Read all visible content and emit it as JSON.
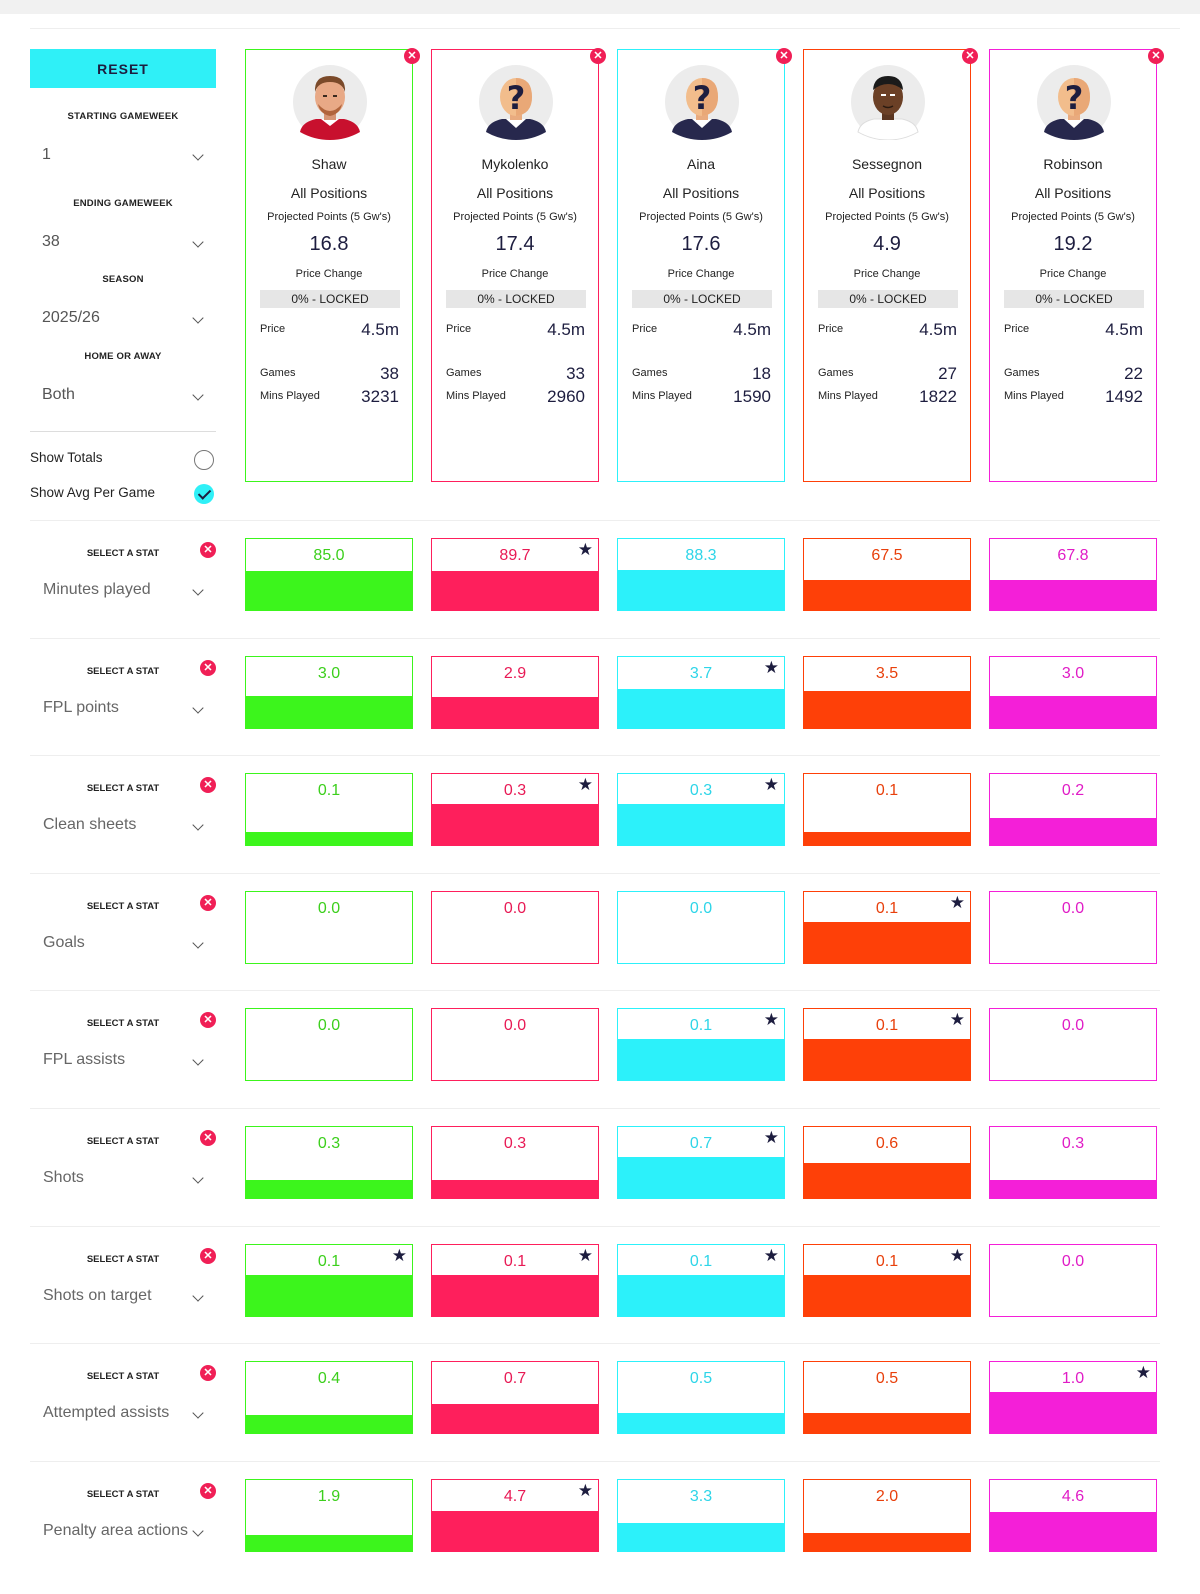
{
  "sidebar": {
    "reset_label": "RESET",
    "starting_gw": {
      "label": "STARTING GAMEWEEK",
      "value": "1"
    },
    "ending_gw": {
      "label": "ENDING GAMEWEEK",
      "value": "38"
    },
    "season": {
      "label": "SEASON",
      "value": "2025/26"
    },
    "home_away": {
      "label": "HOME OR AWAY",
      "value": "Both"
    },
    "show_totals": {
      "label": "Show Totals",
      "checked": false
    },
    "show_avg": {
      "label": "Show Avg Per Game",
      "checked": true
    }
  },
  "card_labels": {
    "projected": "Projected Points (5 Gw's)",
    "price_change": "Price Change",
    "price": "Price",
    "games": "Games",
    "mins": "Mins Played"
  },
  "stat_select_label": "SELECT A STAT",
  "colors": {
    "green": "#3cf51c",
    "red": "#fe1f5c",
    "cyan": "#2cf1fa",
    "orange": "#fe4008",
    "magenta": "#f41fd8",
    "accent": "#2ff0f7",
    "remove": "#f01f56",
    "navy": "#1d1d3f"
  },
  "players": [
    {
      "name": "Shaw",
      "position": "All Positions",
      "projected": "16.8",
      "price_change": "0% - LOCKED",
      "price": "4.5m",
      "games": "38",
      "mins": "3231",
      "avatar": "player-photo",
      "color": "#3cf51c",
      "num_color": "#3ccf1c"
    },
    {
      "name": "Mykolenko",
      "position": "All Positions",
      "projected": "17.4",
      "price_change": "0% - LOCKED",
      "price": "4.5m",
      "games": "33",
      "mins": "2960",
      "avatar": "unknown-player",
      "color": "#fe1f5c",
      "num_color": "#e81a55"
    },
    {
      "name": "Aina",
      "position": "All Positions",
      "projected": "17.6",
      "price_change": "0% - LOCKED",
      "price": "4.5m",
      "games": "18",
      "mins": "1590",
      "avatar": "unknown-player",
      "color": "#2cf1fa",
      "num_color": "#2ed5e8"
    },
    {
      "name": "Sessegnon",
      "position": "All Positions",
      "projected": "4.9",
      "price_change": "0% - LOCKED",
      "price": "4.5m",
      "games": "27",
      "mins": "1822",
      "avatar": "player-photo-dark",
      "color": "#fe4008",
      "num_color": "#e8400c"
    },
    {
      "name": "Robinson",
      "position": "All Positions",
      "projected": "19.2",
      "price_change": "0% - LOCKED",
      "price": "4.5m",
      "games": "22",
      "mins": "1492",
      "avatar": "unknown-player",
      "color": "#f41fd8",
      "num_color": "#e01cc6"
    }
  ],
  "stats": [
    {
      "name": "Minutes played",
      "values": [
        "85.0",
        "89.7",
        "88.3",
        "67.5",
        "67.8"
      ],
      "fills": [
        0.56,
        0.56,
        0.57,
        0.43,
        0.43
      ],
      "stars": [
        false,
        true,
        false,
        false,
        false
      ]
    },
    {
      "name": "FPL points",
      "values": [
        "3.0",
        "2.9",
        "3.7",
        "3.5",
        "3.0"
      ],
      "fills": [
        0.46,
        0.44,
        0.56,
        0.53,
        0.46
      ],
      "stars": [
        false,
        false,
        true,
        false,
        false
      ]
    },
    {
      "name": "Clean sheets",
      "values": [
        "0.1",
        "0.3",
        "0.3",
        "0.1",
        "0.2"
      ],
      "fills": [
        0.18,
        0.58,
        0.58,
        0.18,
        0.38
      ],
      "stars": [
        false,
        true,
        true,
        false,
        false
      ]
    },
    {
      "name": "Goals",
      "values": [
        "0.0",
        "0.0",
        "0.0",
        "0.1",
        "0.0"
      ],
      "fills": [
        0,
        0,
        0,
        0.58,
        0
      ],
      "stars": [
        false,
        false,
        false,
        true,
        false
      ]
    },
    {
      "name": "FPL assists",
      "values": [
        "0.0",
        "0.0",
        "0.1",
        "0.1",
        "0.0"
      ],
      "fills": [
        0,
        0,
        0.58,
        0.58,
        0
      ],
      "stars": [
        false,
        false,
        true,
        true,
        false
      ]
    },
    {
      "name": "Shots",
      "values": [
        "0.3",
        "0.3",
        "0.7",
        "0.6",
        "0.3"
      ],
      "fills": [
        0.25,
        0.25,
        0.58,
        0.5,
        0.25
      ],
      "stars": [
        false,
        false,
        true,
        false,
        false
      ]
    },
    {
      "name": "Shots on target",
      "values": [
        "0.1",
        "0.1",
        "0.1",
        "0.1",
        "0.0"
      ],
      "fills": [
        0.58,
        0.58,
        0.58,
        0.58,
        0
      ],
      "stars": [
        true,
        true,
        true,
        true,
        false
      ]
    },
    {
      "name": "Attempted assists",
      "values": [
        "0.4",
        "0.7",
        "0.5",
        "0.5",
        "1.0"
      ],
      "fills": [
        0.25,
        0.42,
        0.29,
        0.29,
        0.58
      ],
      "stars": [
        false,
        false,
        false,
        false,
        true
      ]
    },
    {
      "name": "Penalty area actions",
      "values": [
        "1.9",
        "4.7",
        "3.3",
        "2.0",
        "4.6"
      ],
      "fills": [
        0.23,
        0.57,
        0.4,
        0.25,
        0.56
      ],
      "stars": [
        false,
        true,
        false,
        false,
        false
      ]
    }
  ]
}
